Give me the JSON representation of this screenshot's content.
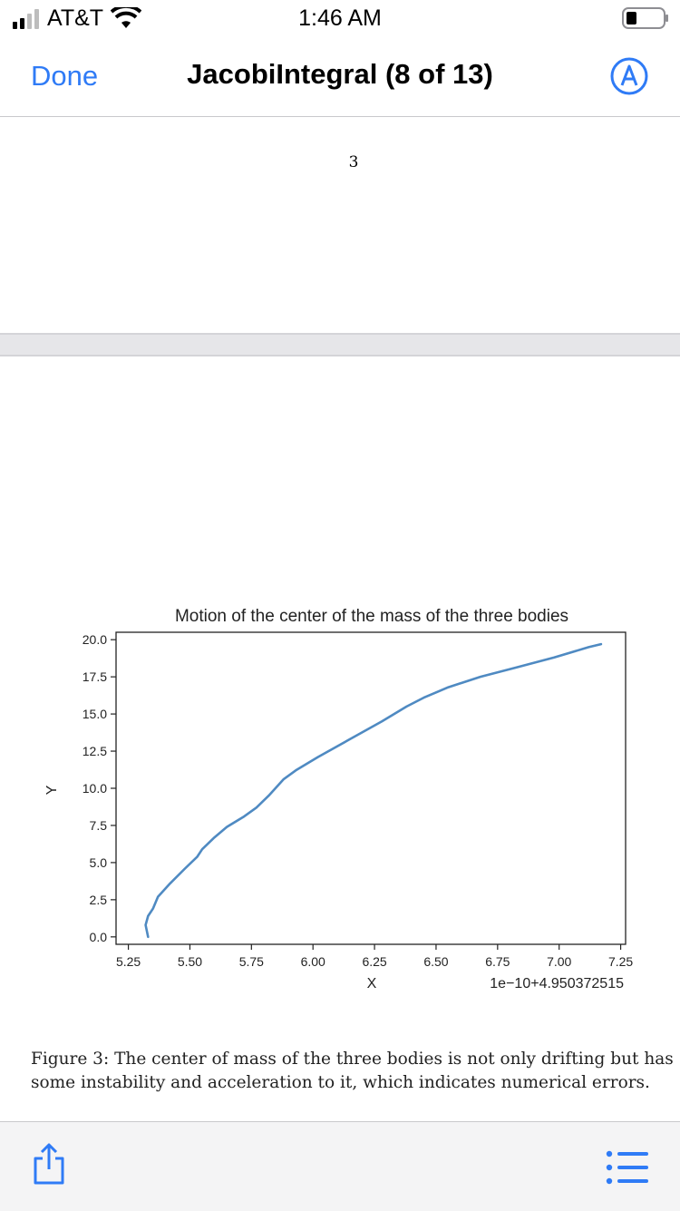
{
  "status_bar": {
    "carrier": "AT&T",
    "time": "1:46 AM"
  },
  "nav": {
    "done_label": "Done",
    "title": "JacobiIntegral (8 of 13)"
  },
  "doc": {
    "page_number": "3",
    "caption": "Figure 3: The center of mass of the three bodies is not only drifting but has some instability and acceleration to it, which indicates numerical errors."
  },
  "icons": {
    "markup": "markup-icon",
    "share": "share-icon",
    "list": "list-icon"
  },
  "colors": {
    "accent": "#2f7bf6",
    "series": "#4f8ac2"
  },
  "chart_data": {
    "type": "line",
    "title": "Motion of the center of the mass of the three bodies",
    "xlabel": "X",
    "ylabel": "Y",
    "offset_label": "1e−10+4.950372515",
    "xlim": [
      5.2,
      7.27
    ],
    "ylim": [
      -0.5,
      20.5
    ],
    "xticks": [
      "5.25",
      "5.50",
      "5.75",
      "6.00",
      "6.25",
      "6.50",
      "6.75",
      "7.00",
      "7.25"
    ],
    "yticks": [
      "0.0",
      "2.5",
      "5.0",
      "7.5",
      "10.0",
      "12.5",
      "15.0",
      "17.5",
      "20.0"
    ],
    "series": [
      {
        "x": [
          5.33,
          5.32,
          5.33,
          5.35,
          5.37,
          5.42,
          5.48,
          5.53,
          5.55,
          5.6,
          5.65,
          5.72,
          5.77,
          5.82,
          5.88,
          5.93,
          6.02,
          6.15,
          6.28,
          6.38,
          6.45,
          6.55,
          6.68,
          6.82,
          6.98,
          7.12,
          7.17
        ],
        "y": [
          0.0,
          0.8,
          1.4,
          1.9,
          2.7,
          3.6,
          4.6,
          5.4,
          5.9,
          6.7,
          7.4,
          8.1,
          8.7,
          9.5,
          10.6,
          11.2,
          12.1,
          13.3,
          14.5,
          15.5,
          16.1,
          16.8,
          17.5,
          18.1,
          18.8,
          19.5,
          19.7
        ]
      }
    ]
  }
}
